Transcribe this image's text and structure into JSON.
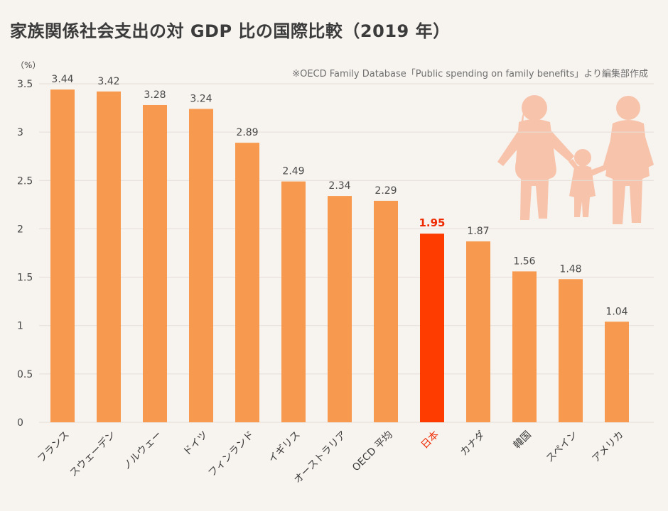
{
  "title": "家族関係社会支出の対 GDP 比の国際比較（2019 年）",
  "source_note": "※OECD Family Database「Public spending on family benefits」より編集部作成",
  "colors": {
    "bar": "#f79a4f",
    "highlight_bar": "#ff3c00",
    "highlight_text": "#ee2a00",
    "background": "#f7f3ef",
    "figure": "#f7c3ab"
  },
  "chart_data": {
    "type": "bar",
    "title": "家族関係社会支出の対 GDP 比の国際比較（2019 年）",
    "y_unit": "（%）",
    "ylim": [
      0,
      3.5
    ],
    "yticks": [
      "0",
      "0.5",
      "1",
      "1.5",
      "2",
      "2.5",
      "3",
      "3.5"
    ],
    "categories": [
      "フランス",
      "スウェーデン",
      "ノルウェー",
      "ドイツ",
      "フィンランド",
      "イギリス",
      "オーストラリア",
      "OECD 平均",
      "日本",
      "カナダ",
      "韓国",
      "スペイン",
      "アメリカ"
    ],
    "values": [
      3.44,
      3.42,
      3.28,
      3.24,
      2.89,
      2.49,
      2.34,
      2.29,
      1.95,
      1.87,
      1.56,
      1.48,
      1.04
    ],
    "value_labels": [
      "3.44",
      "3.42",
      "3.28",
      "3.24",
      "2.89",
      "2.49",
      "2.34",
      "2.29",
      "1.95",
      "1.87",
      "1.56",
      "1.48",
      "1.04"
    ],
    "highlight_index": 8,
    "legend": "none"
  }
}
